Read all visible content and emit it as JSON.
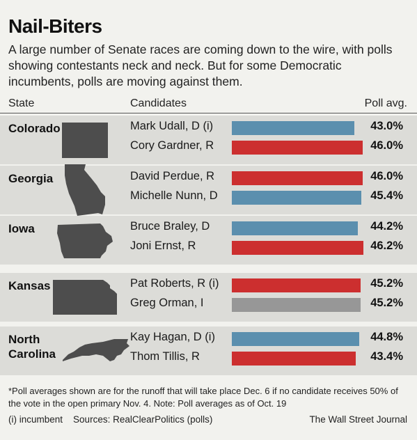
{
  "title": "Nail-Biters",
  "subtitle": "A large number of Senate races are coming down to the wire, with polls showing contestants neck and neck. But for some Democratic incumbents, polls are moving against them.",
  "headers": {
    "state": "State",
    "candidates": "Candidates",
    "poll": "Poll avg."
  },
  "colors": {
    "D": "#5b8fae",
    "R": "#cc2f2f",
    "I": "#979797"
  },
  "chart_data": {
    "type": "bar",
    "title": "Nail-Biters",
    "value_label": "Poll avg.",
    "races": [
      {
        "state": "Colorado",
        "shape": "colorado-map-icon",
        "candidates": [
          {
            "name": "Mark Udall, D (i)",
            "party": "D",
            "value": 43.0,
            "label": "43.0%"
          },
          {
            "name": "Cory Gardner, R",
            "party": "R",
            "value": 46.0,
            "label": "46.0%"
          }
        ]
      },
      {
        "state": "Georgia",
        "shape": "georgia-map-icon",
        "candidates": [
          {
            "name": "David Perdue, R",
            "party": "R",
            "value": 46.0,
            "label": "46.0%"
          },
          {
            "name": "Michelle Nunn, D",
            "party": "D",
            "value": 45.4,
            "label": "45.4%"
          }
        ]
      },
      {
        "state": "Iowa",
        "shape": "iowa-map-icon",
        "candidates": [
          {
            "name": "Bruce Braley, D",
            "party": "D",
            "value": 44.2,
            "label": "44.2%"
          },
          {
            "name": "Joni Ernst, R",
            "party": "R",
            "value": 46.2,
            "label": "46.2%"
          }
        ]
      },
      {
        "state": "Kansas",
        "shape": "kansas-map-icon",
        "candidates": [
          {
            "name": "Pat Roberts, R (i)",
            "party": "R",
            "value": 45.2,
            "label": "45.2%"
          },
          {
            "name": "Greg Orman, I",
            "party": "I",
            "value": 45.2,
            "label": "45.2%"
          }
        ]
      },
      {
        "state": "North Carolina",
        "shape": "north-carolina-map-icon",
        "candidates": [
          {
            "name": "Kay Hagan, D (i)",
            "party": "D",
            "value": 44.8,
            "label": "44.8%"
          },
          {
            "name": "Thom Tillis, R",
            "party": "R",
            "value": 43.4,
            "label": "43.4%"
          }
        ]
      }
    ]
  },
  "footnote": "*Poll averages shown are for the runoff that will take place Dec. 6 if no candidate receives 50% of the vote in the open primary Nov. 4. Note: Poll averages as of Oct. 19",
  "footer": {
    "incumbent": "(i) incumbent",
    "sources": "Sources: RealClearPolitics (polls)",
    "credit": "The Wall Street Journal"
  }
}
